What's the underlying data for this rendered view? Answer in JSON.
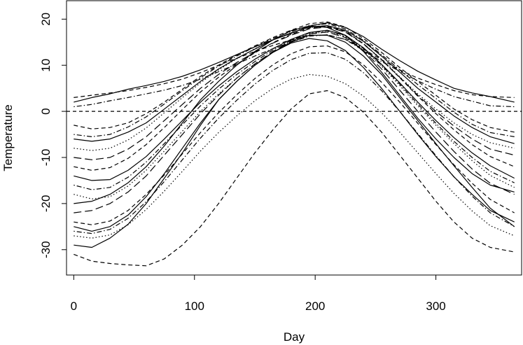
{
  "chart_data": {
    "type": "line",
    "title": "",
    "xlabel": "Day",
    "ylabel": "Temperature",
    "xlim": [
      -6,
      371
    ],
    "ylim": [
      -35.5,
      24
    ],
    "x_ticks": [
      0,
      100,
      200,
      300
    ],
    "y_ticks": [
      -30,
      -20,
      -10,
      0,
      10,
      20
    ],
    "x_tick_labels": [
      "0",
      "100",
      "200",
      "300"
    ],
    "y_tick_labels": [
      "-30",
      "-20",
      "-10",
      "0",
      "10",
      "20"
    ],
    "grid": false,
    "legend": "none",
    "reference_line": {
      "y": 0,
      "style": "dashed"
    },
    "x": [
      0,
      15,
      30,
      45,
      60,
      75,
      90,
      105,
      120,
      135,
      150,
      165,
      180,
      195,
      210,
      225,
      240,
      255,
      270,
      285,
      300,
      315,
      330,
      345,
      365
    ],
    "series": [
      {
        "style": "solid",
        "values": [
          2,
          3,
          3.8,
          4.8,
          5.6,
          6.5,
          7.6,
          9,
          10.6,
          12.3,
          14,
          15.5,
          16.9,
          18.5,
          19.2,
          18.2,
          16.2,
          13.5,
          11,
          8.7,
          6.8,
          5,
          4,
          3.2,
          2
        ]
      },
      {
        "style": "dashed",
        "values": [
          3,
          3.5,
          4,
          4.5,
          5.2,
          6,
          7,
          8.4,
          10,
          11.5,
          13,
          14.3,
          15.5,
          16.4,
          16.6,
          15.6,
          13.5,
          11.2,
          9,
          7.2,
          5.8,
          4.5,
          3.6,
          3.2,
          3
        ]
      },
      {
        "style": "dotdash",
        "values": [
          1,
          1.5,
          2.3,
          3,
          3.8,
          4.6,
          5.6,
          7,
          8.6,
          10.3,
          12,
          13.6,
          15,
          16.3,
          16.6,
          15.6,
          13.2,
          10.8,
          8.7,
          6.6,
          4.8,
          3.2,
          2.2,
          1.2,
          1
        ]
      },
      {
        "style": "solid",
        "values": [
          -6,
          -6.5,
          -6,
          -4.5,
          -2.5,
          0.5,
          3.5,
          6.5,
          9.2,
          11.5,
          13.5,
          15.5,
          17,
          18.3,
          18.6,
          17.6,
          15.2,
          12,
          8.5,
          5,
          2,
          -1,
          -3.5,
          -5.5,
          -7
        ]
      },
      {
        "style": "dashed",
        "values": [
          -3,
          -3.8,
          -3.5,
          -2.5,
          -0.5,
          2,
          4.8,
          7.6,
          10,
          12.2,
          14.2,
          16,
          17.6,
          19,
          19.4,
          18.3,
          15.8,
          12.8,
          9.5,
          6.5,
          3.5,
          0.5,
          -1.8,
          -3.5,
          -4.5
        ]
      },
      {
        "style": "dotted",
        "values": [
          -8,
          -8.5,
          -8,
          -6.2,
          -3.6,
          -0.3,
          3,
          6.2,
          9,
          11.4,
          13.6,
          15.5,
          17,
          18.2,
          18.4,
          17.3,
          14.7,
          11.3,
          7.5,
          3.8,
          0.5,
          -2.5,
          -5,
          -6.8,
          -8
        ]
      },
      {
        "style": "dotdash",
        "values": [
          -5,
          -5.5,
          -5,
          -3.4,
          -1.2,
          1.6,
          4.5,
          7.3,
          9.8,
          12,
          14,
          15.8,
          17.3,
          18.6,
          19,
          17.9,
          15.4,
          12.3,
          9,
          5.8,
          2.8,
          -0.2,
          -2.8,
          -4.6,
          -5.5
        ]
      },
      {
        "style": "longdash",
        "values": [
          -10,
          -10.5,
          -10,
          -8.2,
          -5.5,
          -2,
          1.5,
          5,
          8,
          10.6,
          12.8,
          14.8,
          16.5,
          17.9,
          18.3,
          17.2,
          14.6,
          11.2,
          7.4,
          3.5,
          0,
          -3.2,
          -6,
          -8.2,
          -9.5
        ]
      },
      {
        "style": "solid",
        "values": [
          -14,
          -15,
          -14.8,
          -12.8,
          -9.8,
          -6,
          -2,
          2,
          5.5,
          8.6,
          11.3,
          13.6,
          15.6,
          17.1,
          17.6,
          16.5,
          13.8,
          10.2,
          6.2,
          2,
          -2,
          -5.7,
          -9,
          -11.8,
          -14.5
        ]
      },
      {
        "style": "dashed",
        "values": [
          -12,
          -12.8,
          -12.2,
          -10.2,
          -7.2,
          -3.5,
          0.4,
          4.2,
          7.4,
          10.2,
          12.7,
          14.9,
          16.7,
          18.1,
          18.5,
          17.4,
          14.7,
          11.2,
          7.3,
          3.3,
          -0.5,
          -4,
          -7.2,
          -9.8,
          -12
        ]
      },
      {
        "style": "dotted",
        "values": [
          -18,
          -19,
          -18.5,
          -16.2,
          -12.8,
          -8.6,
          -4.3,
          0,
          3.8,
          7.2,
          10.2,
          12.8,
          15,
          16.7,
          17.3,
          16.2,
          13.5,
          9.8,
          5.6,
          1.2,
          -3,
          -7,
          -10.7,
          -13.9,
          -16.5
        ]
      },
      {
        "style": "dotdash",
        "values": [
          -16,
          -17,
          -16.5,
          -14.3,
          -11,
          -7,
          -2.9,
          1.2,
          4.8,
          8,
          10.8,
          13.3,
          15.4,
          17,
          17.5,
          16.4,
          13.7,
          10,
          5.9,
          1.6,
          -2.6,
          -6.5,
          -10,
          -13,
          -15.5
        ]
      },
      {
        "style": "solid",
        "values": [
          -20,
          -19.5,
          -18,
          -15.5,
          -12,
          -7.5,
          -2.5,
          2.5,
          6.5,
          10,
          13,
          15.5,
          17.5,
          18.5,
          18.2,
          16.5,
          13,
          8.5,
          3.5,
          -1.5,
          -6,
          -10,
          -13.5,
          -16,
          -17.5
        ]
      },
      {
        "style": "longdash",
        "values": [
          -22,
          -21.5,
          -20,
          -17.5,
          -14,
          -9.5,
          -5,
          -0.5,
          3.5,
          7.2,
          10.3,
          13,
          15.2,
          16.8,
          17.2,
          16,
          13.2,
          9.2,
          4.6,
          0,
          -4.5,
          -8.7,
          -12.5,
          -15.6,
          -18
        ]
      },
      {
        "style": "solid",
        "values": [
          -25,
          -26,
          -25,
          -22.5,
          -18.5,
          -13.5,
          -8,
          -2.5,
          2.5,
          6.5,
          10,
          12.8,
          14.8,
          15.8,
          15.3,
          13.2,
          9.5,
          5,
          0,
          -5,
          -9.8,
          -14.2,
          -18,
          -21.5,
          -24
        ]
      },
      {
        "style": "solid",
        "values": [
          -29,
          -29.5,
          -27.5,
          -24.5,
          -20,
          -14.5,
          -9,
          -3,
          2.5,
          6.5,
          10,
          12.8,
          15,
          16.5,
          16.5,
          15,
          12,
          8,
          3,
          -2,
          -7,
          -11.8,
          -16.5,
          -21,
          -25
        ]
      },
      {
        "style": "dotted",
        "values": [
          -27,
          -27.5,
          -26.8,
          -24.6,
          -21.3,
          -17.3,
          -13,
          -8.6,
          -4.6,
          -1,
          2.3,
          5,
          7,
          8,
          7.6,
          6,
          3.3,
          -0.3,
          -4.5,
          -9,
          -13.5,
          -17.8,
          -21.6,
          -24.8,
          -27
        ]
      },
      {
        "style": "dotdash",
        "values": [
          -26,
          -26.5,
          -25.6,
          -23.2,
          -19.6,
          -15.2,
          -10.5,
          -5.8,
          -1.5,
          2.4,
          5.9,
          8.9,
          11.2,
          12.6,
          12.7,
          11.3,
          8.4,
          4.5,
          0,
          -4.8,
          -9.6,
          -14.2,
          -18.4,
          -22,
          -25
        ]
      },
      {
        "style": "dashed",
        "values": [
          -24,
          -24.6,
          -23.8,
          -21.5,
          -18,
          -13.8,
          -9.2,
          -4.6,
          -0.3,
          3.6,
          7.1,
          10.1,
          12.5,
          14,
          14.2,
          12.9,
          10.1,
          6.3,
          2,
          -2.6,
          -7.2,
          -11.6,
          -15.6,
          -19.1,
          -22
        ]
      },
      {
        "style": "dashed",
        "values": [
          -31,
          -32.5,
          -33,
          -33.3,
          -33.5,
          -32,
          -29,
          -25,
          -20,
          -14.5,
          -9,
          -4,
          0.5,
          3.8,
          4.5,
          3,
          -0.2,
          -4.5,
          -9.5,
          -14.5,
          -19.5,
          -24,
          -27.5,
          -29.5,
          -30.5
        ]
      }
    ]
  }
}
